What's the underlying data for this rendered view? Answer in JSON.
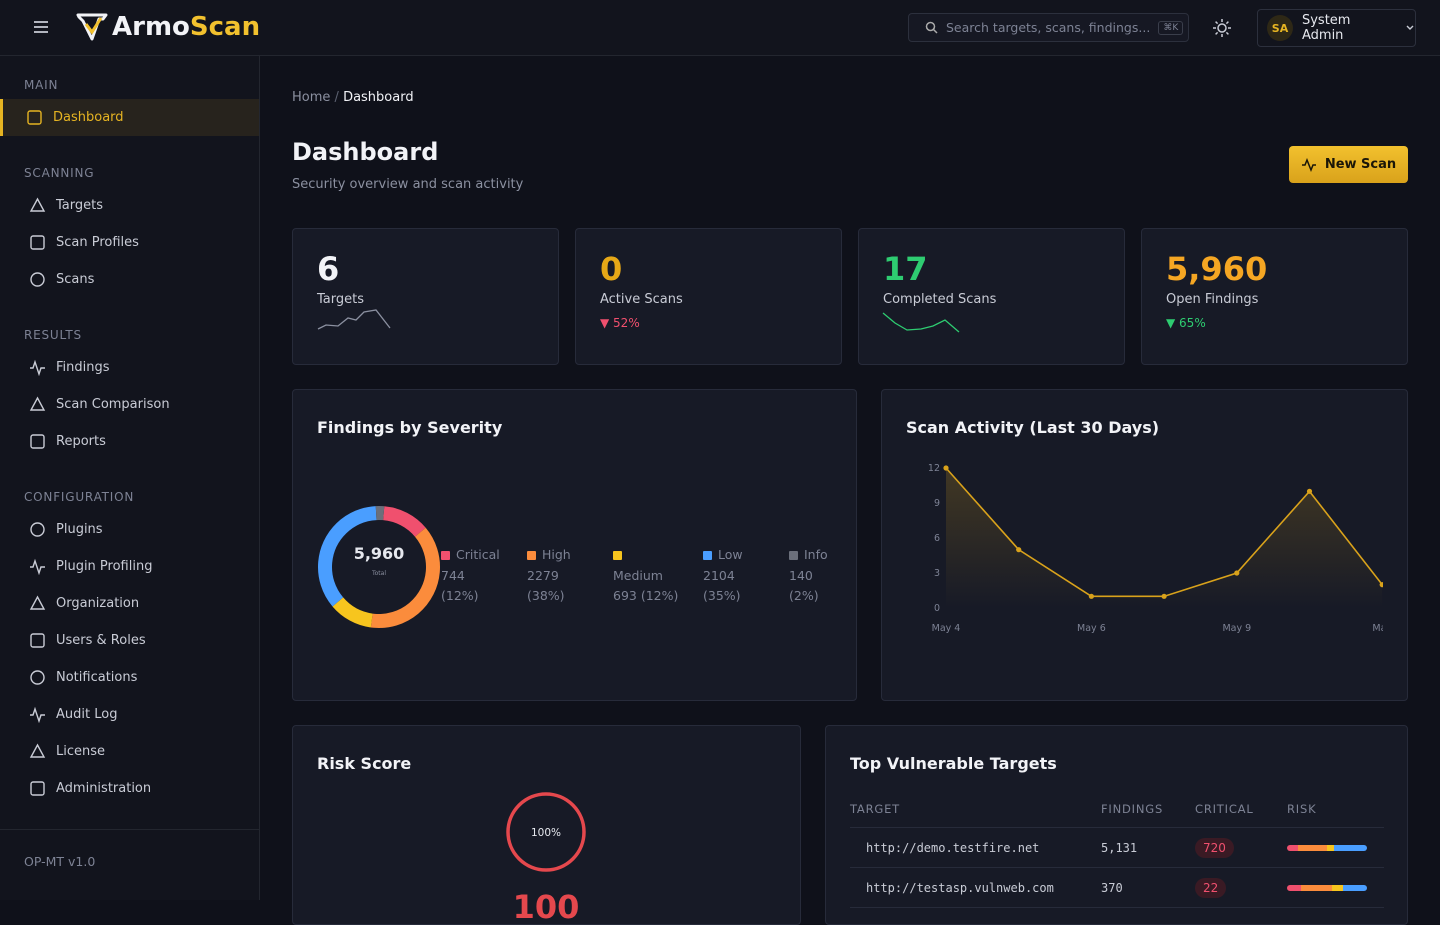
{
  "header": {
    "brand_a": "Armo",
    "brand_b": "Scan",
    "search_placeholder": "Search targets, scans, findings...",
    "shortcut": "⌘K",
    "user_initials": "SA",
    "user_name": "System Admin"
  },
  "sidebar": {
    "sections": [
      {
        "title": "MAIN",
        "items": [
          "Dashboard"
        ]
      },
      {
        "title": "SCANNING",
        "items": [
          "Targets",
          "Scan Profiles",
          "Scans"
        ]
      },
      {
        "title": "RESULTS",
        "items": [
          "Findings",
          "Scan Comparison",
          "Reports"
        ]
      },
      {
        "title": "CONFIGURATION",
        "items": [
          "Plugins",
          "Plugin Profiling",
          "Organization",
          "Users & Roles",
          "Notifications",
          "Audit Log",
          "License",
          "Administration"
        ]
      }
    ],
    "active": "Dashboard",
    "version": "OP-MT v1.0"
  },
  "page": {
    "breadcrumb": [
      "Home",
      "Dashboard"
    ],
    "breadcrumb_separator": "/",
    "title": "Dashboard",
    "subtitle": "Security overview and scan activity",
    "button": "New Scan"
  },
  "stats": [
    {
      "value": "6",
      "label": "Targets",
      "color": "#f2f3f7"
    },
    {
      "value": "0",
      "label": "Active Scans",
      "change": "▼ 52%",
      "color": "#e6a817",
      "change_color": "#f0506e"
    },
    {
      "value": "17",
      "label": "Completed Scans",
      "color": "#2ecc71"
    },
    {
      "value": "5,960",
      "label": "Open Findings",
      "change": "▼ 65%",
      "color": "#f5a623",
      "change_color": "#2ecc71"
    }
  ],
  "chart_data": [
    {
      "type": "donut",
      "title": "Findings by Severity",
      "center_value": "5,960",
      "center_label": "Total",
      "categories": [
        "Critical",
        "High",
        "Medium",
        "Low",
        "Info"
      ],
      "values": [
        744,
        2279,
        693,
        2104,
        140
      ],
      "percent_labels": [
        "(12%)",
        "(38%)",
        "(12%)",
        "(35%)",
        "(2%)"
      ],
      "colors": [
        "#f0506e",
        "#fb8c3c",
        "#f7c51e",
        "#4a9eff",
        "#6b6f7b"
      ]
    },
    {
      "type": "line",
      "title": "Scan Activity (Last 30 Days)",
      "categories": [
        "May 4",
        null,
        "May 6",
        null,
        "May 9",
        null,
        "May"
      ],
      "values": [
        12,
        5,
        1,
        1,
        3,
        10,
        2
      ],
      "ylim": [
        0,
        12
      ],
      "yticks": [
        0,
        3,
        6,
        9,
        12
      ],
      "color": "#d9a21b"
    }
  ],
  "risk": {
    "title": "Risk Score",
    "score": 100,
    "percent_label": "100%",
    "score_label": "100"
  },
  "top_targets": {
    "title": "Top Vulnerable Targets",
    "columns": [
      "TARGET",
      "FINDINGS",
      "CRITICAL",
      "RISK"
    ],
    "rows": [
      [
        "http://demo.testfire.net",
        "5,131",
        "720"
      ],
      [
        "http://testasp.vulnweb.com",
        "370",
        "22"
      ]
    ]
  }
}
